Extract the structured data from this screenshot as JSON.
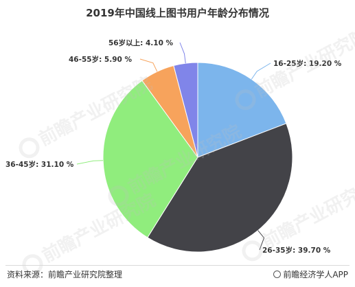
{
  "chart_data": {
    "type": "pie",
    "title": "2019年中国线上图书用户年龄分布情况",
    "slices": [
      {
        "label": "16-25岁",
        "value": 19.2,
        "display": "16-25岁: 19.20 %",
        "color": "#7cb5ec"
      },
      {
        "label": "26-35岁",
        "value": 39.7,
        "display": "26-35岁: 39.70 %",
        "color": "#434348"
      },
      {
        "label": "36-45岁",
        "value": 31.1,
        "display": "36-45岁: 31.10 %",
        "color": "#90ed7d"
      },
      {
        "label": "46-55岁",
        "value": 5.9,
        "display": "46-55岁: 5.90 %",
        "color": "#f7a35c"
      },
      {
        "label": "56岁以上",
        "value": 4.1,
        "display": "56岁以上: 4.10 %",
        "color": "#8085e9"
      }
    ]
  },
  "watermark": {
    "text": "前瞻产业研究院"
  },
  "footer": {
    "source": "资料来源：前瞻产业研究院整理",
    "brand": "前瞻经济学人APP"
  }
}
